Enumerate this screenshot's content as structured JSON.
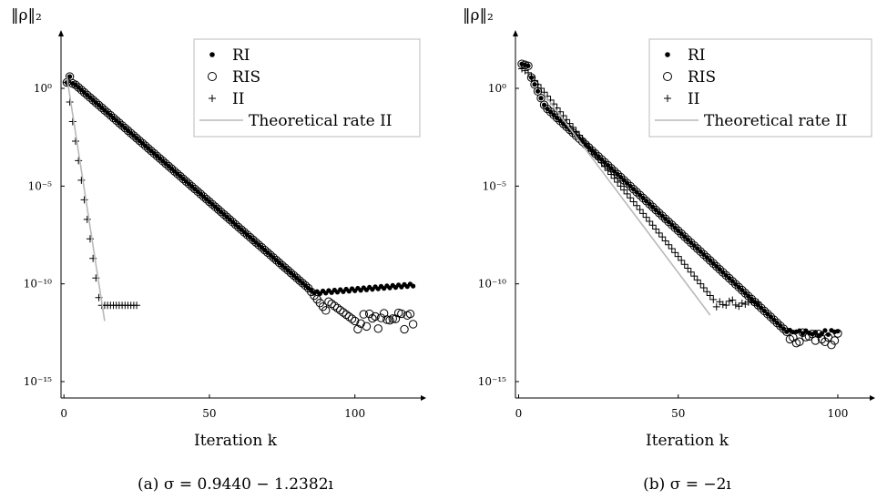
{
  "chart_data": [
    {
      "type": "scatter",
      "ylabel": "‖ρ‖₂",
      "xlabel": "Iteration k",
      "caption": "(a) σ = 0.9440 − 1.2382ı",
      "y_scale": "log",
      "xlim": [
        -1,
        122
      ],
      "ylim_exp": [
        -16,
        3
      ],
      "x_ticks": [
        0,
        50,
        100
      ],
      "y_ticks": [
        {
          "exp": 0,
          "label": "10⁰"
        },
        {
          "exp": -5,
          "label": "10⁻⁵"
        },
        {
          "exp": -10,
          "label": "10⁻¹⁰"
        },
        {
          "exp": -15,
          "label": "10⁻¹⁵"
        }
      ],
      "legend_position": "top-right",
      "series": [
        {
          "name": "RI",
          "marker": "dot",
          "gen": "RI",
          "params": {
            "k0": 1,
            "k1": 120,
            "a": 0.7,
            "b": -0.13,
            "floor_start": 87,
            "floor_base": -10.45,
            "floor_slope": 0.012
          }
        },
        {
          "name": "RIS",
          "marker": "circle",
          "gen": "RIS",
          "params": {
            "k0": 1,
            "k1": 120,
            "a": 0.7,
            "b": -0.13,
            "break_k": 90,
            "noise_floor": -11.9
          }
        },
        {
          "name": "II",
          "marker": "plus",
          "gen": "II",
          "params": {
            "k0": 1,
            "k1": 25,
            "a": 0.3,
            "b": -1.0,
            "floor_start": 13,
            "floor": -11.1
          }
        },
        {
          "name": "Theoretical rate II",
          "marker": "line",
          "color": "#b8b8b8",
          "points": [
            [
              1,
              0.6
            ],
            [
              14,
              -11.9
            ]
          ]
        }
      ]
    },
    {
      "type": "scatter",
      "ylabel": "‖ρ‖₂",
      "xlabel": "Iteration k",
      "caption": "(b) σ = −2ı",
      "y_scale": "log",
      "xlim": [
        -1,
        110
      ],
      "ylim_exp": [
        -16,
        3
      ],
      "x_ticks": [
        0,
        50,
        100
      ],
      "y_ticks": [
        {
          "exp": 0,
          "label": "10⁰"
        },
        {
          "exp": -5,
          "label": "10⁻⁵"
        },
        {
          "exp": -10,
          "label": "10⁻¹⁰"
        },
        {
          "exp": -15,
          "label": "10⁻¹⁵"
        }
      ],
      "legend_position": "top-right",
      "series": [
        {
          "name": "RI",
          "marker": "dot",
          "gen": "RI2",
          "params": {
            "k0": 1,
            "k1": 100,
            "floor_start": 85,
            "floor": -12.5
          }
        },
        {
          "name": "RIS",
          "marker": "circle",
          "gen": "RIS2",
          "params": {
            "k0": 1,
            "k1": 100,
            "floor_start": 85,
            "floor": -12.8
          }
        },
        {
          "name": "II",
          "marker": "plus",
          "gen": "II2",
          "params": {
            "k0": 1,
            "k1": 75,
            "floor_start": 62,
            "floor": -11.0
          }
        },
        {
          "name": "Theoretical rate II",
          "marker": "line",
          "color": "#b8b8b8",
          "points": [
            [
              8,
              -0.3
            ],
            [
              60,
              -11.6
            ]
          ]
        }
      ]
    }
  ]
}
